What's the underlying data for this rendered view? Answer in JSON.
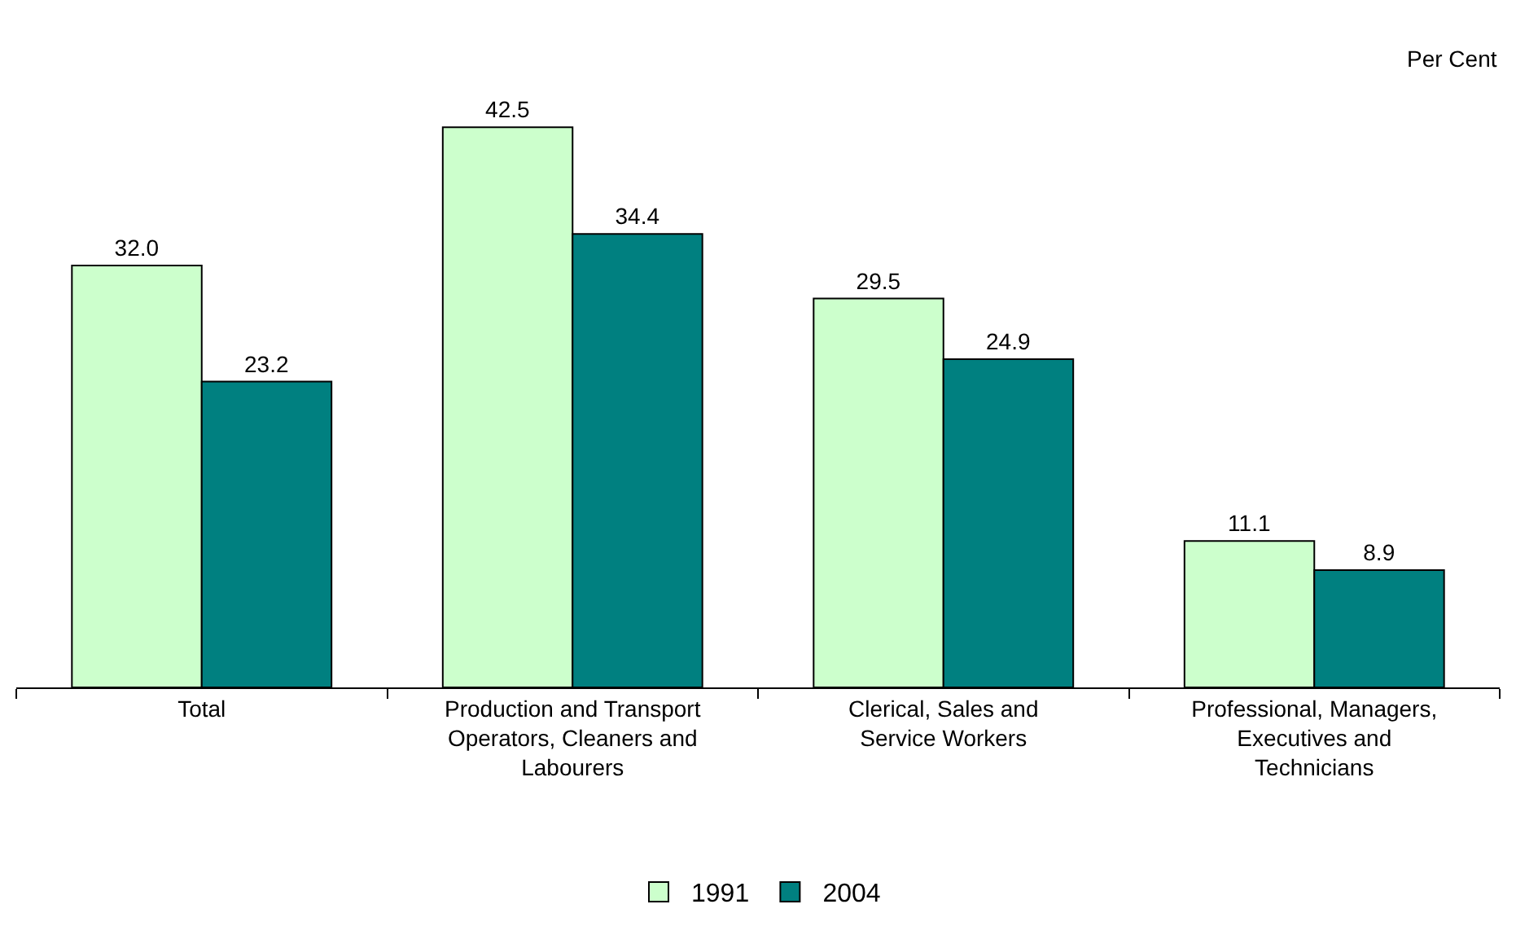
{
  "chart_data": {
    "type": "bar",
    "ylabel": "Per Cent",
    "categories": [
      "Total",
      "Production and Transport Operators, Cleaners and Labourers",
      "Clerical, Sales and Service Workers",
      "Professional, Managers, Executives and Technicians"
    ],
    "series": [
      {
        "name": "1991",
        "color": "#ccffcc",
        "values": [
          32.0,
          42.5,
          29.5,
          11.1
        ],
        "value_labels": [
          "32.0",
          "42.5",
          "29.5",
          "11.1"
        ]
      },
      {
        "name": "2004",
        "color": "#008080",
        "values": [
          23.2,
          34.4,
          24.9,
          8.9
        ],
        "value_labels": [
          "23.2",
          "34.4",
          "24.9",
          "8.9"
        ]
      }
    ],
    "legend": "bottom"
  }
}
